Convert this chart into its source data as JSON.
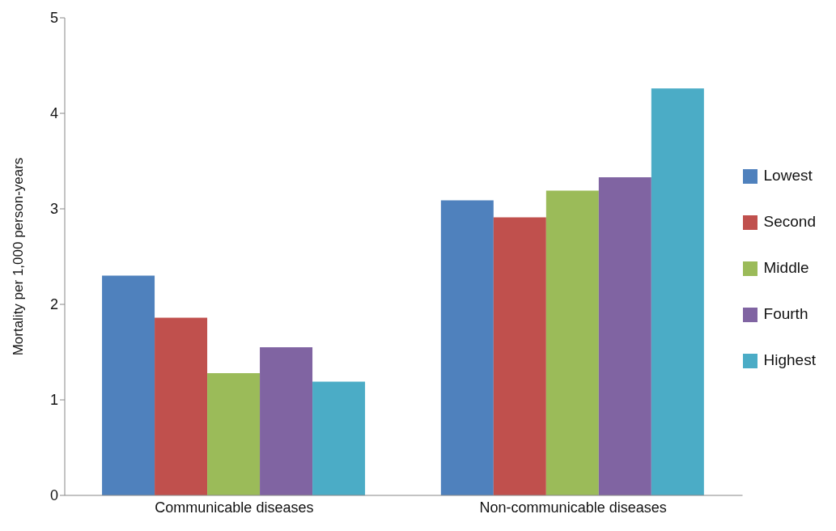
{
  "chart_data": {
    "type": "bar",
    "ylabel": "Mortality per 1,000 person-years",
    "categories": [
      "Communicable diseases",
      "Non-communicable diseases"
    ],
    "series": [
      {
        "name": "Lowest",
        "color": "#4f81bd",
        "values": [
          2.3,
          3.09
        ]
      },
      {
        "name": "Second",
        "color": "#c0504d",
        "values": [
          1.86,
          2.91
        ]
      },
      {
        "name": "Middle",
        "color": "#9bbb59",
        "values": [
          1.28,
          3.19
        ]
      },
      {
        "name": "Fourth",
        "color": "#8064a2",
        "values": [
          1.55,
          3.33
        ]
      },
      {
        "name": "Highest",
        "color": "#4bacc6",
        "values": [
          1.19,
          4.26
        ]
      }
    ],
    "ylim": [
      0,
      5
    ],
    "yticks": [
      0,
      1,
      2,
      3,
      4,
      5
    ],
    "grid": false,
    "legend": "right"
  }
}
